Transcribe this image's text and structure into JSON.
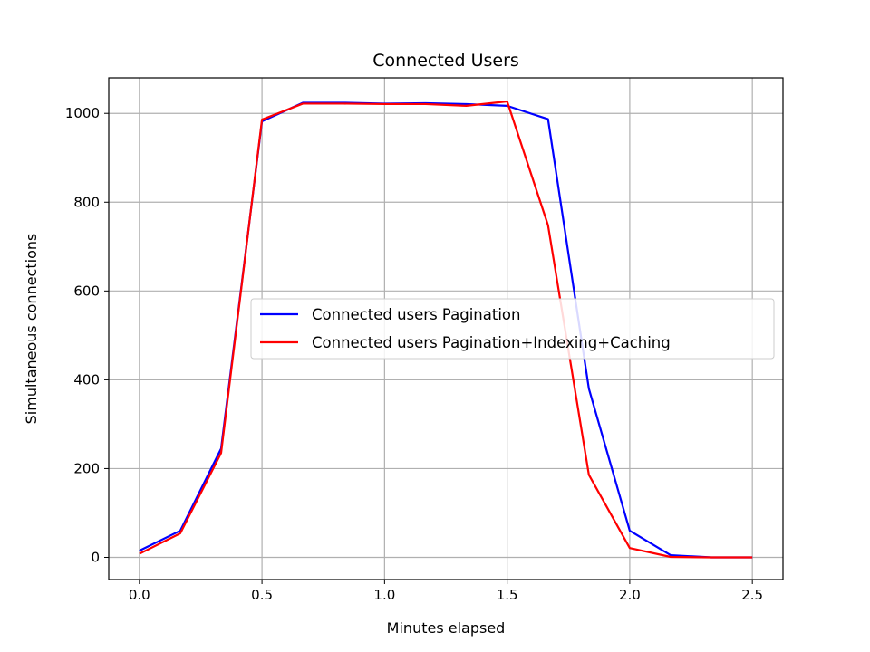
{
  "chart_data": {
    "type": "line",
    "title": "Connected Users",
    "xlabel": "Minutes elapsed",
    "ylabel": "Simultaneous connections",
    "xlim": [
      -0.125,
      2.625
    ],
    "ylim": [
      -50,
      1080
    ],
    "xticks": [
      0.0,
      0.5,
      1.0,
      1.5,
      2.0,
      2.5
    ],
    "xtick_labels": [
      "0.0",
      "0.5",
      "1.0",
      "1.5",
      "2.0",
      "2.5"
    ],
    "yticks": [
      0,
      200,
      400,
      600,
      800,
      1000
    ],
    "ytick_labels": [
      "0",
      "200",
      "400",
      "600",
      "800",
      "1000"
    ],
    "grid": true,
    "legend_position": "center-right",
    "x": [
      0.0,
      0.1667,
      0.3333,
      0.5,
      0.6667,
      0.8333,
      1.0,
      1.1667,
      1.3333,
      1.5,
      1.6667,
      1.8333,
      2.0,
      2.1667,
      2.3333,
      2.5
    ],
    "series": [
      {
        "name": "Connected users Pagination",
        "color": "#0000ff",
        "values": [
          15,
          60,
          245,
          982,
          1024,
          1024,
          1022,
          1023,
          1021,
          1017,
          987,
          380,
          60,
          5,
          0,
          0
        ]
      },
      {
        "name": "Connected users Pagination+Indexing+Caching",
        "color": "#ff0000",
        "values": [
          8,
          54,
          235,
          986,
          1022,
          1022,
          1021,
          1021,
          1017,
          1027,
          748,
          186,
          21,
          1,
          0,
          0
        ]
      }
    ]
  }
}
